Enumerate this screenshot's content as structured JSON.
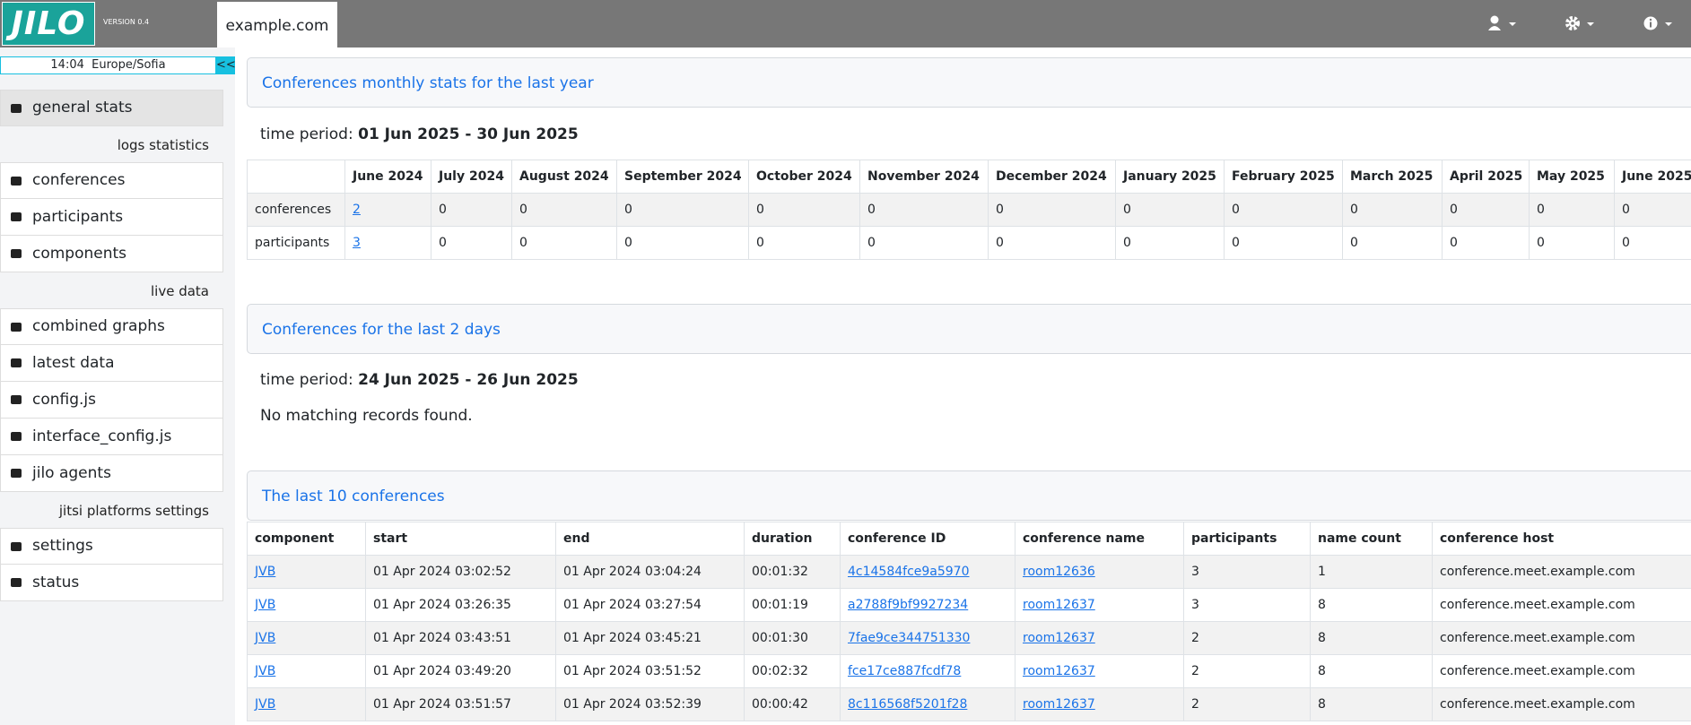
{
  "header": {
    "logo": "JILO",
    "version": "VERSION 0.4",
    "tab": "example.com"
  },
  "sidebar": {
    "time": "14:04  Europe/Sofia",
    "toggle": "<<",
    "top_item": "general stats",
    "sections": [
      {
        "heading": "logs statistics",
        "items": [
          "conferences",
          "participants",
          "components"
        ]
      },
      {
        "heading": "live data",
        "items": [
          "combined graphs",
          "latest data",
          "config.js",
          "interface_config.js",
          "jilo agents"
        ]
      },
      {
        "heading": "jitsi platforms settings",
        "items": [
          "settings",
          "status"
        ]
      }
    ]
  },
  "monthly": {
    "title": "Conferences monthly stats for the last year",
    "period_label": "time period:",
    "period": "01 Jun 2025 - 30 Jun 2025",
    "columns": [
      "June 2024",
      "July 2024",
      "August 2024",
      "September 2024",
      "October 2024",
      "November 2024",
      "December 2024",
      "January 2025",
      "February 2025",
      "March 2025",
      "April 2025",
      "May 2025",
      "June 2025"
    ],
    "rows": [
      {
        "label": "conferences",
        "cells": [
          2,
          0,
          0,
          0,
          0,
          0,
          0,
          0,
          0,
          0,
          0,
          0,
          0
        ]
      },
      {
        "label": "participants",
        "cells": [
          3,
          0,
          0,
          0,
          0,
          0,
          0,
          0,
          0,
          0,
          0,
          0,
          0
        ]
      }
    ]
  },
  "recent": {
    "title": "Conferences for the last 2 days",
    "period_label": "time period:",
    "period": "24 Jun 2025 - 26 Jun 2025",
    "message": "No matching records found."
  },
  "last10": {
    "title": "The last 10 conferences",
    "columns": [
      "component",
      "start",
      "end",
      "duration",
      "conference ID",
      "conference name",
      "participants",
      "name count",
      "conference host"
    ],
    "rows": [
      [
        "JVB",
        "01 Apr 2024 03:02:52",
        "01 Apr 2024 03:04:24",
        "00:01:32",
        "4c14584fce9a5970",
        "room12636",
        3,
        1,
        "conference.meet.example.com"
      ],
      [
        "JVB",
        "01 Apr 2024 03:26:35",
        "01 Apr 2024 03:27:54",
        "00:01:19",
        "a2788f9bf9927234",
        "room12637",
        3,
        8,
        "conference.meet.example.com"
      ],
      [
        "JVB",
        "01 Apr 2024 03:43:51",
        "01 Apr 2024 03:45:21",
        "00:01:30",
        "7fae9ce344751330",
        "room12637",
        2,
        8,
        "conference.meet.example.com"
      ],
      [
        "JVB",
        "01 Apr 2024 03:49:20",
        "01 Apr 2024 03:51:52",
        "00:02:32",
        "fce17ce887fcdf78",
        "room12637",
        2,
        8,
        "conference.meet.example.com"
      ],
      [
        "JVB",
        "01 Apr 2024 03:51:57",
        "01 Apr 2024 03:52:39",
        "00:00:42",
        "8c116568f5201f28",
        "room12637",
        2,
        8,
        "conference.meet.example.com"
      ]
    ]
  }
}
